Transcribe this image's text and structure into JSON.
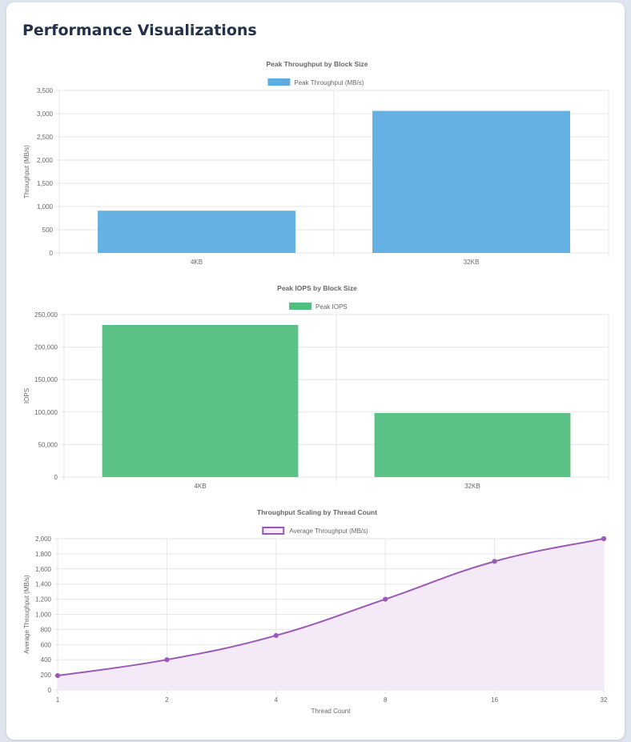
{
  "page_title": "Performance Visualizations",
  "chart_data": [
    {
      "id": "throughput",
      "type": "bar",
      "title": "Peak Throughput by Block Size",
      "categories": [
        "4KB",
        "32KB"
      ],
      "series": [
        {
          "name": "Peak Throughput (MB/s)",
          "values": [
            910,
            3060
          ],
          "color": "#5dade2"
        }
      ],
      "xlabel": "",
      "ylabel": "Throughput (MB/s)",
      "ylim": [
        0,
        3500
      ],
      "yticks": [
        0,
        500,
        1000,
        1500,
        2000,
        2500,
        3000,
        3500
      ],
      "ytick_labels": [
        "0",
        "500",
        "1,000",
        "1,500",
        "2,000",
        "2,500",
        "3,000",
        "3,500"
      ],
      "legend": "top-center",
      "grid": true
    },
    {
      "id": "iops",
      "type": "bar",
      "title": "Peak IOPS by Block Size",
      "categories": [
        "4KB",
        "32KB"
      ],
      "series": [
        {
          "name": "Peak IOPS",
          "values": [
            234000,
            98500
          ],
          "color": "#52be80"
        }
      ],
      "xlabel": "",
      "ylabel": "IOPS",
      "ylim": [
        0,
        250000
      ],
      "yticks": [
        0,
        50000,
        100000,
        150000,
        200000,
        250000
      ],
      "ytick_labels": [
        "0",
        "50,000",
        "100,000",
        "150,000",
        "200,000",
        "250,000"
      ],
      "legend": "top-center",
      "grid": true
    },
    {
      "id": "scaling",
      "type": "area",
      "title": "Throughput Scaling by Thread Count",
      "categories": [
        "1",
        "2",
        "4",
        "8",
        "16",
        "32"
      ],
      "series": [
        {
          "name": "Average Throughput (MB/s)",
          "values": [
            190,
            400,
            720,
            1200,
            1700,
            2000
          ],
          "color": "#9b59b6",
          "fill": "#f3e9f7"
        }
      ],
      "xlabel": "Thread Count",
      "ylabel": "Average Throughput (MB/s)",
      "ylim": [
        0,
        2000
      ],
      "yticks": [
        0,
        200,
        400,
        600,
        800,
        1000,
        1200,
        1400,
        1600,
        1800,
        2000
      ],
      "ytick_labels": [
        "0",
        "200",
        "400",
        "600",
        "800",
        "1,000",
        "1,200",
        "1,400",
        "1,600",
        "1,800",
        "2,000"
      ],
      "legend": "top-center",
      "grid": true
    }
  ]
}
